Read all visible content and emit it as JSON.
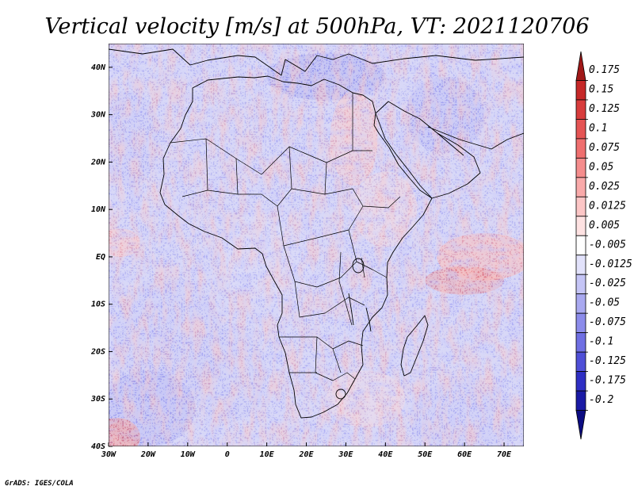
{
  "title": "Vertical velocity [m/s] at 500hPa, VT: 2021120706",
  "credit": "GrADS: IGES/COLA",
  "map": {
    "lon_range": [
      -30,
      75
    ],
    "lat_range": [
      -40,
      45
    ],
    "x_ticks": [
      {
        "lon": -30,
        "label": "30W"
      },
      {
        "lon": -20,
        "label": "20W"
      },
      {
        "lon": -10,
        "label": "10W"
      },
      {
        "lon": 0,
        "label": "0"
      },
      {
        "lon": 10,
        "label": "10E"
      },
      {
        "lon": 20,
        "label": "20E"
      },
      {
        "lon": 30,
        "label": "30E"
      },
      {
        "lon": 40,
        "label": "40E"
      },
      {
        "lon": 50,
        "label": "50E"
      },
      {
        "lon": 60,
        "label": "60E"
      },
      {
        "lon": 70,
        "label": "70E"
      }
    ],
    "y_ticks": [
      {
        "lat": 40,
        "label": "40N"
      },
      {
        "lat": 30,
        "label": "30N"
      },
      {
        "lat": 20,
        "label": "20N"
      },
      {
        "lat": 10,
        "label": "10N"
      },
      {
        "lat": 0,
        "label": "EQ"
      },
      {
        "lat": -10,
        "label": "10S"
      },
      {
        "lat": -20,
        "label": "20S"
      },
      {
        "lat": -30,
        "label": "30S"
      },
      {
        "lat": -40,
        "label": "40S"
      }
    ]
  },
  "colorbar": {
    "units": "m/s",
    "labels": [
      "0.175",
      "0.15",
      "0.125",
      "0.1",
      "0.075",
      "0.05",
      "0.025",
      "0.0125",
      "0.005",
      "-0.005",
      "-0.0125",
      "-0.025",
      "-0.05",
      "-0.075",
      "-0.1",
      "-0.125",
      "-0.175",
      "-0.2"
    ],
    "colors": [
      "#a01818",
      "#c62828",
      "#d83c3c",
      "#e55454",
      "#ef6f6f",
      "#f58d8d",
      "#f9aaaa",
      "#fcc6c6",
      "#fee2e2",
      "#ffffff",
      "#e2e2fb",
      "#c5c5f6",
      "#a9a9f0",
      "#8c8ceb",
      "#6f6fe3",
      "#4f4fd7",
      "#2f2fc4",
      "#1a1aa5",
      "#0c0c82"
    ]
  },
  "colors": {
    "land_border": "#000000",
    "neutral": "#f4f4fa"
  }
}
